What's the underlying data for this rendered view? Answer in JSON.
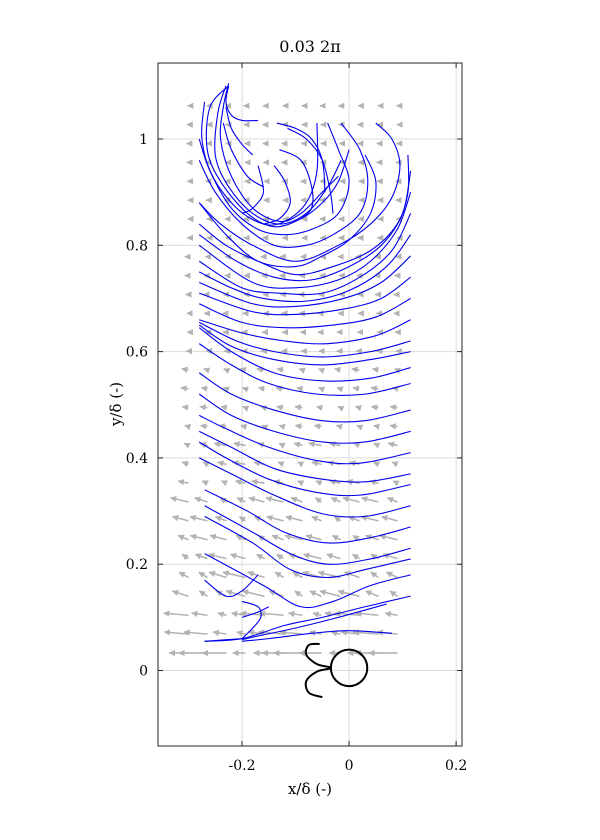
{
  "chart_data": {
    "type": "streamline+quiver",
    "title": "0.03 2π",
    "xlabel": "x/δ (-)",
    "ylabel": "y/δ (-)",
    "xlim": [
      -0.357,
      0.211
    ],
    "ylim": [
      -0.142,
      1.143
    ],
    "xticks": [
      -0.2,
      0,
      0.2
    ],
    "xticklabels": [
      "-0.2",
      "0",
      "0.2"
    ],
    "yticks": [
      0,
      0.2,
      0.4,
      0.6,
      0.8,
      1
    ],
    "yticklabels": [
      "0",
      "0.2",
      "0.4",
      "0.6",
      "0.8",
      "1"
    ],
    "grid": true,
    "colors": {
      "streamline": "#0000ee",
      "quiver": "#b3b3b3",
      "grid": "#dcdcdc",
      "axes": "#262626",
      "body": "#000000"
    },
    "streamlines": [
      [
        [
          -0.225,
          1.105
        ],
        [
          -0.235,
          1.06
        ],
        [
          -0.24,
          1.0
        ],
        [
          -0.22,
          0.93
        ],
        [
          -0.18,
          0.87
        ],
        [
          -0.13,
          0.845
        ],
        [
          -0.09,
          0.86
        ],
        [
          -0.05,
          0.9
        ],
        [
          -0.02,
          0.93
        ]
      ],
      [
        [
          -0.23,
          1.1
        ],
        [
          -0.245,
          1.05
        ],
        [
          -0.25,
          0.97
        ],
        [
          -0.225,
          0.91
        ],
        [
          -0.18,
          0.86
        ],
        [
          -0.13,
          0.84
        ],
        [
          -0.08,
          0.86
        ],
        [
          -0.04,
          0.91
        ],
        [
          -0.015,
          0.96
        ]
      ],
      [
        [
          -0.225,
          1.1
        ],
        [
          -0.26,
          1.06
        ],
        [
          -0.265,
          0.98
        ],
        [
          -0.24,
          0.92
        ],
        [
          -0.19,
          0.86
        ],
        [
          -0.14,
          0.835
        ],
        [
          -0.09,
          0.85
        ],
        [
          -0.05,
          0.88
        ],
        [
          -0.02,
          0.92
        ],
        [
          0.0,
          0.98
        ]
      ],
      [
        [
          -0.27,
          1.07
        ],
        [
          -0.275,
          1.0
        ],
        [
          -0.255,
          0.93
        ],
        [
          -0.21,
          0.87
        ],
        [
          -0.16,
          0.84
        ],
        [
          -0.12,
          0.845
        ],
        [
          -0.08,
          0.88
        ],
        [
          -0.06,
          0.94
        ],
        [
          -0.06,
          1.03
        ]
      ],
      [
        [
          -0.225,
          1.1
        ],
        [
          -0.23,
          1.07
        ],
        [
          -0.22,
          1.045
        ],
        [
          -0.2,
          1.035
        ],
        [
          -0.17,
          1.035
        ]
      ],
      [
        [
          -0.23,
          1.06
        ],
        [
          -0.22,
          1.02
        ],
        [
          -0.2,
          0.99
        ],
        [
          -0.18,
          0.97
        ]
      ],
      [
        [
          -0.235,
          1.03
        ],
        [
          -0.22,
          0.98
        ],
        [
          -0.19,
          0.93
        ],
        [
          -0.16,
          0.91
        ]
      ],
      [
        [
          -0.135,
          1.03
        ],
        [
          -0.1,
          1.02
        ],
        [
          -0.07,
          1.0
        ],
        [
          -0.05,
          0.96
        ],
        [
          -0.045,
          0.9
        ]
      ],
      [
        [
          -0.115,
          1.02
        ],
        [
          -0.08,
          1.0
        ],
        [
          -0.05,
          0.96
        ],
        [
          -0.035,
          0.9
        ],
        [
          -0.03,
          0.86
        ]
      ],
      [
        [
          -0.13,
          0.98
        ],
        [
          -0.09,
          0.96
        ],
        [
          -0.07,
          0.91
        ],
        [
          -0.07,
          0.87
        ],
        [
          -0.09,
          0.85
        ]
      ],
      [
        [
          -0.14,
          0.95
        ],
        [
          -0.12,
          0.92
        ],
        [
          -0.11,
          0.88
        ],
        [
          -0.13,
          0.85
        ],
        [
          -0.16,
          0.84
        ]
      ],
      [
        [
          -0.17,
          0.95
        ],
        [
          -0.16,
          0.9
        ],
        [
          -0.18,
          0.87
        ],
        [
          -0.2,
          0.86
        ]
      ],
      [
        [
          -0.04,
          1.03
        ],
        [
          -0.02,
          0.98
        ],
        [
          0.0,
          0.92
        ],
        [
          -0.02,
          0.86
        ],
        [
          -0.07,
          0.83
        ],
        [
          -0.12,
          0.82
        ],
        [
          -0.17,
          0.83
        ],
        [
          -0.22,
          0.87
        ],
        [
          -0.26,
          0.94
        ],
        [
          -0.28,
          1.0
        ]
      ],
      [
        [
          -0.015,
          1.03
        ],
        [
          0.02,
          0.98
        ],
        [
          0.035,
          0.92
        ],
        [
          0.02,
          0.86
        ],
        [
          -0.03,
          0.82
        ],
        [
          -0.08,
          0.8
        ],
        [
          -0.14,
          0.8
        ],
        [
          -0.2,
          0.84
        ],
        [
          -0.25,
          0.9
        ],
        [
          -0.28,
          0.96
        ]
      ],
      [
        [
          0.05,
          1.03
        ],
        [
          0.08,
          1.0
        ],
        [
          0.095,
          0.95
        ],
        [
          0.08,
          0.89
        ],
        [
          0.04,
          0.84
        ],
        [
          -0.02,
          0.8
        ],
        [
          -0.1,
          0.77
        ],
        [
          -0.18,
          0.8
        ],
        [
          -0.24,
          0.84
        ],
        [
          -0.28,
          0.88
        ]
      ],
      [
        [
          0.03,
          0.97
        ],
        [
          0.05,
          0.92
        ],
        [
          0.04,
          0.86
        ],
        [
          0.0,
          0.81
        ],
        [
          -0.05,
          0.78
        ],
        [
          -0.1,
          0.76
        ],
        [
          -0.17,
          0.77
        ],
        [
          -0.23,
          0.82
        ],
        [
          -0.28,
          0.88
        ]
      ],
      [
        [
          0.11,
          0.97
        ],
        [
          0.11,
          0.9
        ],
        [
          0.09,
          0.84
        ],
        [
          0.04,
          0.79
        ],
        [
          -0.03,
          0.76
        ],
        [
          -0.1,
          0.745
        ],
        [
          -0.17,
          0.77
        ],
        [
          -0.23,
          0.8
        ],
        [
          -0.28,
          0.84
        ]
      ],
      [
        [
          0.115,
          0.94
        ],
        [
          0.1,
          0.86
        ],
        [
          0.06,
          0.8
        ],
        [
          0.0,
          0.76
        ],
        [
          -0.07,
          0.735
        ],
        [
          -0.14,
          0.74
        ],
        [
          -0.21,
          0.77
        ],
        [
          -0.28,
          0.82
        ]
      ],
      [
        [
          0.115,
          0.9
        ],
        [
          0.09,
          0.83
        ],
        [
          0.04,
          0.77
        ],
        [
          -0.02,
          0.735
        ],
        [
          -0.1,
          0.72
        ],
        [
          -0.18,
          0.73
        ],
        [
          -0.28,
          0.8
        ]
      ],
      [
        [
          0.115,
          0.86
        ],
        [
          0.08,
          0.79
        ],
        [
          0.02,
          0.74
        ],
        [
          -0.05,
          0.71
        ],
        [
          -0.13,
          0.71
        ],
        [
          -0.2,
          0.72
        ],
        [
          -0.28,
          0.77
        ]
      ],
      [
        [
          0.115,
          0.82
        ],
        [
          0.07,
          0.76
        ],
        [
          0.0,
          0.715
        ],
        [
          -0.08,
          0.695
        ],
        [
          -0.16,
          0.7
        ],
        [
          -0.22,
          0.72
        ],
        [
          -0.28,
          0.75
        ]
      ],
      [
        [
          0.115,
          0.78
        ],
        [
          0.06,
          0.73
        ],
        [
          -0.01,
          0.7
        ],
        [
          -0.1,
          0.685
        ],
        [
          -0.18,
          0.69
        ],
        [
          -0.28,
          0.73
        ]
      ],
      [
        [
          0.115,
          0.74
        ],
        [
          0.06,
          0.7
        ],
        [
          -0.01,
          0.68
        ],
        [
          -0.1,
          0.67
        ],
        [
          -0.18,
          0.675
        ],
        [
          -0.28,
          0.71
        ]
      ],
      [
        [
          0.115,
          0.7
        ],
        [
          0.05,
          0.665
        ],
        [
          -0.03,
          0.65
        ],
        [
          -0.12,
          0.645
        ],
        [
          -0.2,
          0.655
        ],
        [
          -0.28,
          0.69
        ]
      ],
      [
        [
          0.115,
          0.66
        ],
        [
          0.05,
          0.63
        ],
        [
          -0.04,
          0.615
        ],
        [
          -0.12,
          0.62
        ],
        [
          -0.2,
          0.635
        ],
        [
          -0.28,
          0.66
        ]
      ],
      [
        [
          0.115,
          0.62
        ],
        [
          0.04,
          0.6
        ],
        [
          -0.05,
          0.59
        ],
        [
          -0.14,
          0.6
        ],
        [
          -0.21,
          0.62
        ],
        [
          -0.28,
          0.655
        ]
      ],
      [
        [
          0.115,
          0.6
        ],
        [
          0.04,
          0.585
        ],
        [
          -0.05,
          0.575
        ],
        [
          -0.14,
          0.585
        ],
        [
          -0.22,
          0.61
        ],
        [
          -0.28,
          0.65
        ]
      ],
      [
        [
          0.115,
          0.57
        ],
        [
          0.04,
          0.55
        ],
        [
          -0.05,
          0.545
        ],
        [
          -0.14,
          0.56
        ],
        [
          -0.22,
          0.6
        ],
        [
          -0.28,
          0.645
        ]
      ],
      [
        [
          0.115,
          0.54
        ],
        [
          0.03,
          0.52
        ],
        [
          -0.06,
          0.52
        ],
        [
          -0.15,
          0.54
        ],
        [
          -0.22,
          0.575
        ],
        [
          -0.28,
          0.615
        ]
      ],
      [
        [
          0.115,
          0.49
        ],
        [
          0.03,
          0.47
        ],
        [
          -0.05,
          0.47
        ],
        [
          -0.14,
          0.49
        ],
        [
          -0.22,
          0.52
        ],
        [
          -0.28,
          0.56
        ]
      ],
      [
        [
          0.115,
          0.45
        ],
        [
          0.03,
          0.43
        ],
        [
          -0.05,
          0.43
        ],
        [
          -0.14,
          0.45
        ],
        [
          -0.22,
          0.48
        ],
        [
          -0.28,
          0.52
        ]
      ],
      [
        [
          0.115,
          0.41
        ],
        [
          0.02,
          0.39
        ],
        [
          -0.06,
          0.395
        ],
        [
          -0.15,
          0.42
        ],
        [
          -0.23,
          0.455
        ],
        [
          -0.28,
          0.48
        ]
      ],
      [
        [
          0.115,
          0.37
        ],
        [
          0.03,
          0.355
        ],
        [
          -0.05,
          0.36
        ],
        [
          -0.14,
          0.38
        ],
        [
          -0.22,
          0.42
        ],
        [
          -0.28,
          0.45
        ]
      ],
      [
        [
          0.115,
          0.35
        ],
        [
          0.02,
          0.33
        ],
        [
          -0.06,
          0.335
        ],
        [
          -0.15,
          0.36
        ],
        [
          -0.23,
          0.4
        ],
        [
          -0.28,
          0.43
        ]
      ],
      [
        [
          0.115,
          0.31
        ],
        [
          0.03,
          0.29
        ],
        [
          -0.05,
          0.295
        ],
        [
          -0.14,
          0.33
        ],
        [
          -0.22,
          0.37
        ],
        [
          -0.28,
          0.4
        ]
      ],
      [
        [
          0.115,
          0.27
        ],
        [
          0.04,
          0.25
        ],
        [
          -0.04,
          0.24
        ],
        [
          -0.12,
          0.26
        ],
        [
          -0.19,
          0.3
        ],
        [
          -0.27,
          0.34
        ]
      ],
      [
        [
          0.115,
          0.23
        ],
        [
          0.04,
          0.21
        ],
        [
          -0.04,
          0.2
        ],
        [
          -0.11,
          0.22
        ],
        [
          -0.18,
          0.26
        ],
        [
          -0.27,
          0.31
        ]
      ],
      [
        [
          0.115,
          0.21
        ],
        [
          0.03,
          0.19
        ],
        [
          -0.04,
          0.175
        ],
        [
          -0.11,
          0.19
        ],
        [
          -0.18,
          0.24
        ],
        [
          -0.27,
          0.29
        ]
      ],
      [
        [
          0.115,
          0.18
        ],
        [
          0.04,
          0.16
        ],
        [
          -0.03,
          0.13
        ],
        [
          -0.09,
          0.12
        ],
        [
          -0.16,
          0.16
        ],
        [
          -0.27,
          0.22
        ]
      ],
      [
        [
          0.115,
          0.14
        ],
        [
          0.03,
          0.12
        ],
        [
          -0.05,
          0.1
        ],
        [
          -0.12,
          0.085
        ],
        [
          -0.2,
          0.06
        ],
        [
          -0.27,
          0.055
        ]
      ],
      [
        [
          0.07,
          0.125
        ],
        [
          -0.02,
          0.1
        ],
        [
          -0.1,
          0.08
        ],
        [
          -0.17,
          0.065
        ],
        [
          -0.2,
          0.058
        ]
      ],
      [
        [
          0.08,
          0.07
        ],
        [
          0.0,
          0.075
        ],
        [
          -0.07,
          0.07
        ],
        [
          -0.15,
          0.06
        ],
        [
          -0.2,
          0.055
        ]
      ],
      [
        [
          -0.17,
          0.18
        ],
        [
          -0.2,
          0.15
        ],
        [
          -0.23,
          0.14
        ],
        [
          -0.27,
          0.17
        ]
      ],
      [
        [
          -0.15,
          0.12
        ],
        [
          -0.17,
          0.11
        ],
        [
          -0.2,
          0.1
        ]
      ],
      [
        [
          -0.2,
          0.06
        ],
        [
          -0.18,
          0.08
        ],
        [
          -0.165,
          0.1
        ],
        [
          -0.17,
          0.12
        ],
        [
          -0.2,
          0.13
        ]
      ],
      [
        [
          -0.2,
          0.06
        ],
        [
          -0.27,
          0.055
        ]
      ]
    ],
    "quiver": {
      "x_start": -0.3,
      "x_step": 0.0355,
      "nx": 12,
      "y_start": 0.033,
      "y_step": 0.0355,
      "ny": 30,
      "bands": [
        {
          "ymax": 0.06,
          "u": -0.045,
          "v": 0.0
        },
        {
          "ymax": 0.12,
          "u": -0.04,
          "v": 0.004
        },
        {
          "ymax": 0.2,
          "u": -0.035,
          "v": 0.01
        },
        {
          "ymax": 0.32,
          "u": -0.028,
          "v": 0.008
        },
        {
          "ymax": 0.45,
          "u": -0.02,
          "v": 0.004
        },
        {
          "ymax": 0.6,
          "u": -0.012,
          "v": 0.002
        },
        {
          "ymax": 0.8,
          "u": -0.006,
          "v": 0.0
        },
        {
          "ymax": 1.1,
          "u": -0.003,
          "v": 0.0
        }
      ]
    },
    "body": {
      "circle": {
        "cx": 0.0,
        "cy": 0.005,
        "r": 0.034
      },
      "flag": [
        [
          -0.055,
          0.05
        ],
        [
          -0.075,
          0.048
        ],
        [
          -0.08,
          0.03
        ],
        [
          -0.06,
          0.012
        ],
        [
          -0.034,
          0.005
        ],
        [
          -0.06,
          -0.002
        ],
        [
          -0.08,
          -0.02
        ],
        [
          -0.075,
          -0.042
        ],
        [
          -0.05,
          -0.05
        ]
      ]
    }
  }
}
